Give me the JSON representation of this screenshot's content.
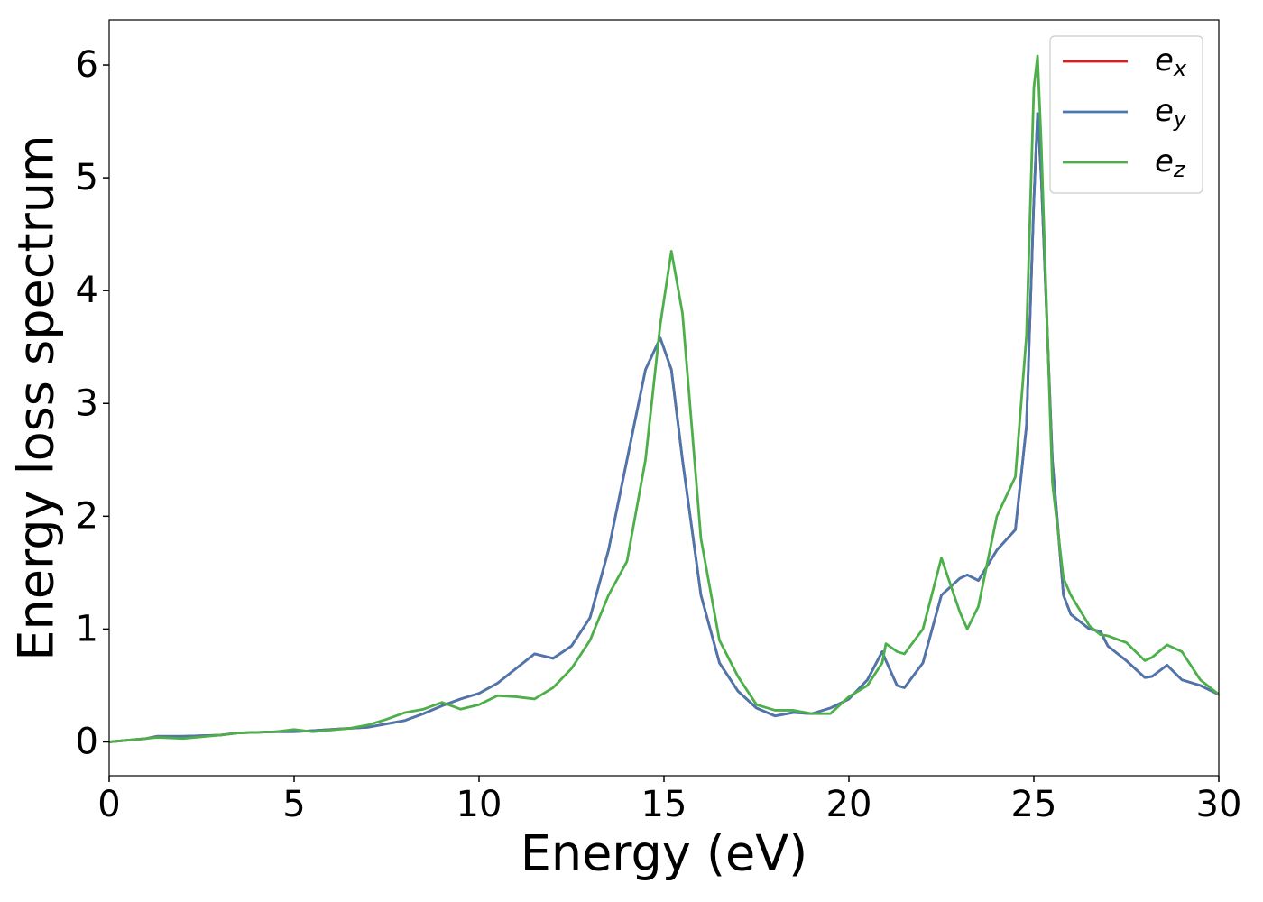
{
  "chart_data": {
    "type": "line",
    "xlabel": "Energy (eV)",
    "ylabel": "Energy loss spectrum",
    "x": [
      0,
      1,
      1.3,
      2,
      3,
      3.5,
      4.5,
      5,
      5.5,
      6.5,
      7,
      7.5,
      8,
      8.5,
      9,
      9.5,
      10,
      10.5,
      11,
      11.5,
      12,
      12.5,
      13,
      13.5,
      14,
      14.5,
      14.9,
      15.2,
      15.5,
      16,
      16.5,
      17,
      17.5,
      18,
      18.5,
      19,
      19.5,
      20,
      20.5,
      20.9,
      21,
      21.3,
      21.5,
      22,
      22.5,
      23,
      23.2,
      23.5,
      24,
      24.5,
      24.8,
      25,
      25.1,
      25.2,
      25.5,
      25.8,
      26,
      26.5,
      26.8,
      27,
      27.5,
      28,
      28.2,
      28.6,
      29,
      29.5,
      30
    ],
    "series": [
      {
        "name": "ex",
        "color": "#e41a1c",
        "values": [
          0,
          0.03,
          0.05,
          0.05,
          0.06,
          0.08,
          0.09,
          0.09,
          0.1,
          0.12,
          0.13,
          0.16,
          0.19,
          0.25,
          0.32,
          0.38,
          0.43,
          0.52,
          0.65,
          0.78,
          0.74,
          0.85,
          1.1,
          1.7,
          2.5,
          3.3,
          3.58,
          3.3,
          2.5,
          1.3,
          0.7,
          0.45,
          0.3,
          0.23,
          0.26,
          0.25,
          0.3,
          0.38,
          0.55,
          0.8,
          0.72,
          0.5,
          0.48,
          0.7,
          1.3,
          1.45,
          1.48,
          1.43,
          1.7,
          1.88,
          2.8,
          4.8,
          5.57,
          5.0,
          2.5,
          1.3,
          1.13,
          1.0,
          0.98,
          0.85,
          0.72,
          0.57,
          0.58,
          0.68,
          0.55,
          0.5,
          0.42
        ]
      },
      {
        "name": "ey",
        "color": "#4a78ae",
        "values": [
          0,
          0.03,
          0.05,
          0.05,
          0.06,
          0.08,
          0.09,
          0.09,
          0.1,
          0.12,
          0.13,
          0.16,
          0.19,
          0.25,
          0.32,
          0.38,
          0.43,
          0.52,
          0.65,
          0.78,
          0.74,
          0.85,
          1.1,
          1.7,
          2.5,
          3.3,
          3.58,
          3.3,
          2.5,
          1.3,
          0.7,
          0.45,
          0.3,
          0.23,
          0.26,
          0.25,
          0.3,
          0.38,
          0.55,
          0.8,
          0.72,
          0.5,
          0.48,
          0.7,
          1.3,
          1.45,
          1.48,
          1.43,
          1.7,
          1.88,
          2.8,
          4.8,
          5.57,
          5.0,
          2.5,
          1.3,
          1.13,
          1.0,
          0.98,
          0.85,
          0.72,
          0.57,
          0.58,
          0.68,
          0.55,
          0.5,
          0.42
        ]
      },
      {
        "name": "ez",
        "color": "#4daf4a",
        "values": [
          0,
          0.03,
          0.04,
          0.03,
          0.06,
          0.08,
          0.09,
          0.11,
          0.09,
          0.12,
          0.15,
          0.2,
          0.26,
          0.29,
          0.35,
          0.29,
          0.33,
          0.41,
          0.4,
          0.38,
          0.48,
          0.65,
          0.9,
          1.3,
          1.6,
          2.5,
          3.7,
          4.35,
          3.8,
          1.8,
          0.9,
          0.58,
          0.33,
          0.28,
          0.28,
          0.25,
          0.25,
          0.4,
          0.5,
          0.7,
          0.87,
          0.8,
          0.78,
          1.0,
          1.63,
          1.15,
          1.0,
          1.2,
          2.0,
          2.35,
          3.6,
          5.8,
          6.08,
          5.3,
          2.3,
          1.45,
          1.3,
          1.03,
          0.95,
          0.94,
          0.88,
          0.72,
          0.75,
          0.86,
          0.8,
          0.55,
          0.42
        ]
      }
    ],
    "xlim": [
      0,
      30
    ],
    "xticks": [
      0,
      5,
      10,
      15,
      20,
      25,
      30
    ],
    "ylim": [
      -0.3,
      6.4
    ],
    "yticks": [
      0,
      1,
      2,
      3,
      4,
      5,
      6
    ],
    "legend": "upper right"
  }
}
